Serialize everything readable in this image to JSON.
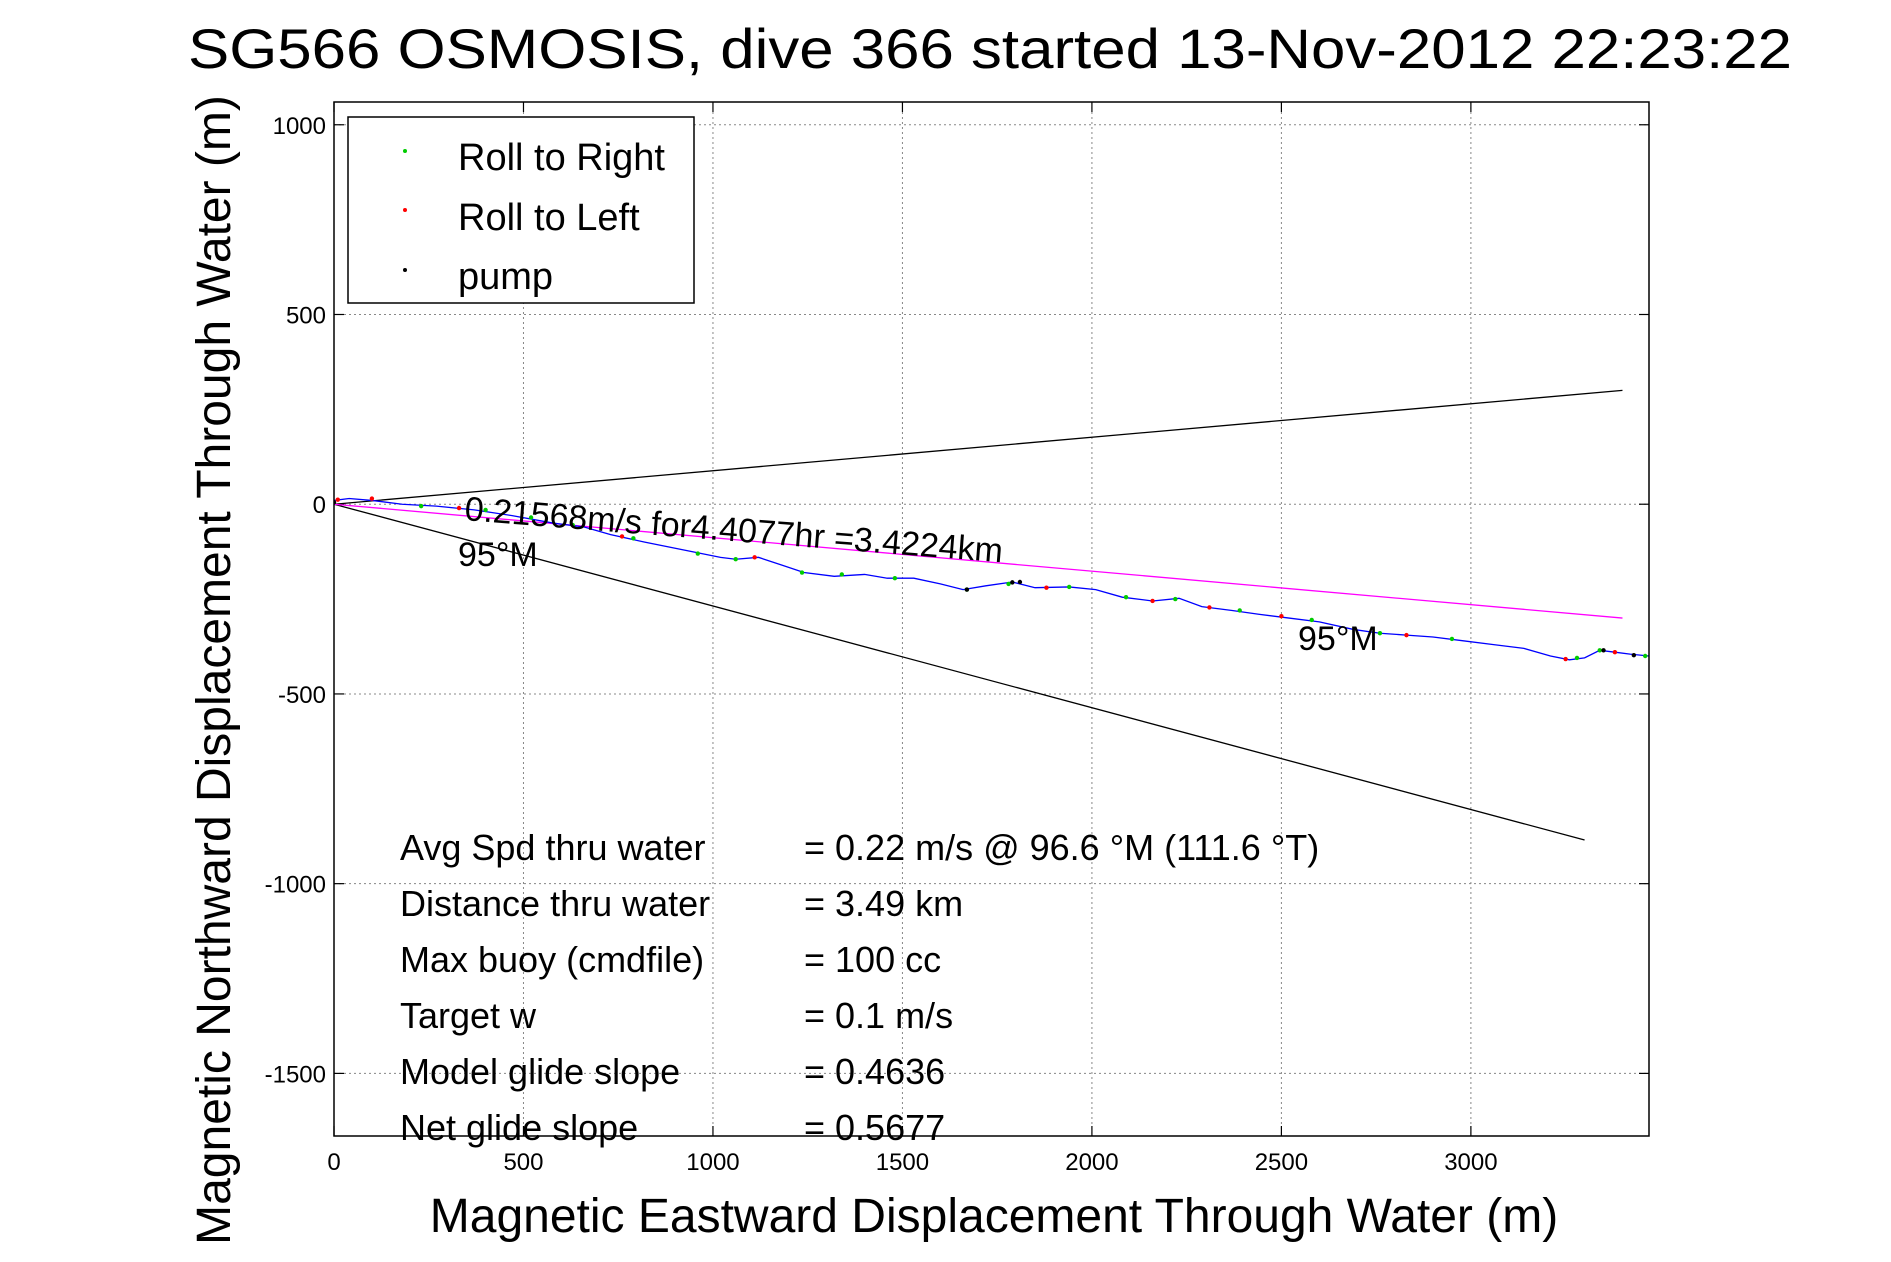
{
  "chart_data": {
    "type": "line",
    "title": "SG566 OSMOSIS, dive 366 started 13-Nov-2012 22:23:22",
    "xlabel": "Magnetic Eastward Displacement Through Water (m)",
    "ylabel": "Magnetic Northward Displacement Through Water (m)",
    "xlim": [
      0,
      3470
    ],
    "ylim": [
      -1665,
      1060
    ],
    "xticks": [
      0,
      500,
      1000,
      1500,
      2000,
      2500,
      3000
    ],
    "yticks": [
      1000,
      500,
      0,
      -500,
      -1000,
      -1500
    ],
    "grid": true,
    "legend": {
      "position": "top-left",
      "entries": [
        {
          "label": "Roll to Right",
          "color": "#00cc00"
        },
        {
          "label": "Roll to Left",
          "color": "#ff0000"
        },
        {
          "label": "pump",
          "color": "#000000"
        }
      ]
    },
    "track": {
      "name": "track",
      "color": "#0000ff",
      "x": [
        0,
        40,
        100,
        180,
        270,
        370,
        470,
        580,
        660,
        730,
        820,
        920,
        1020,
        1060,
        1120,
        1180,
        1240,
        1320,
        1400,
        1460,
        1530,
        1600,
        1660,
        1720,
        1790,
        1850,
        1940,
        2010,
        2080,
        2160,
        2230,
        2290,
        2370,
        2440,
        2520,
        2600,
        2690,
        2760,
        2830,
        2900,
        2980,
        3060,
        3140,
        3210,
        3260,
        3300,
        3340,
        3380,
        3420,
        3470
      ],
      "y": [
        10,
        15,
        10,
        0,
        -5,
        -15,
        -30,
        -50,
        -60,
        -80,
        -100,
        -120,
        -140,
        -145,
        -140,
        -160,
        -180,
        -190,
        -185,
        -195,
        -195,
        -210,
        -225,
        -215,
        -205,
        -220,
        -218,
        -225,
        -245,
        -255,
        -248,
        -270,
        -280,
        -290,
        -300,
        -310,
        -330,
        -340,
        -345,
        -350,
        -360,
        -370,
        -380,
        -400,
        -410,
        -405,
        -385,
        -390,
        -395,
        -400
      ],
      "roll_right": [
        [
          230,
          -5
        ],
        [
          400,
          -15
        ],
        [
          520,
          -35
        ],
        [
          630,
          -55
        ],
        [
          790,
          -90
        ],
        [
          960,
          -130
        ],
        [
          1060,
          -145
        ],
        [
          1235,
          -180
        ],
        [
          1340,
          -185
        ],
        [
          1480,
          -195
        ],
        [
          1670,
          -225
        ],
        [
          1780,
          -210
        ],
        [
          1940,
          -218
        ],
        [
          2090,
          -245
        ],
        [
          2220,
          -250
        ],
        [
          2390,
          -280
        ],
        [
          2580,
          -305
        ],
        [
          2760,
          -340
        ],
        [
          2950,
          -355
        ],
        [
          3280,
          -405
        ],
        [
          3340,
          -385
        ],
        [
          3460,
          -400
        ]
      ],
      "roll_left": [
        [
          10,
          12
        ],
        [
          100,
          15
        ],
        [
          330,
          -10
        ],
        [
          760,
          -85
        ],
        [
          1110,
          -140
        ],
        [
          1880,
          -220
        ],
        [
          2160,
          -255
        ],
        [
          2310,
          -272
        ],
        [
          2500,
          -295
        ],
        [
          2830,
          -345
        ],
        [
          3250,
          -408
        ],
        [
          3380,
          -390
        ]
      ],
      "pump": [
        [
          0,
          5
        ],
        [
          1670,
          -225
        ],
        [
          1790,
          -206
        ],
        [
          1810,
          -205
        ],
        [
          3350,
          -385
        ],
        [
          3430,
          -398
        ]
      ]
    },
    "cone_lines": [
      {
        "name": "upper-bound",
        "color": "#000000",
        "x": [
          0,
          3400
        ],
        "y": [
          0,
          300
        ]
      },
      {
        "name": "lower-bound",
        "color": "#000000",
        "x": [
          0,
          3300
        ],
        "y": [
          0,
          -885
        ]
      },
      {
        "name": "course-line",
        "color": "#ff00ff",
        "x": [
          0,
          3400
        ],
        "y": [
          0,
          -300
        ]
      }
    ],
    "annotations": {
      "speed_label": "0.21568m/s for4.4077hr =3.4224km",
      "heading_start": "95°M",
      "heading_end": "95°M"
    },
    "stats": [
      {
        "label": "Avg Spd thru water",
        "value": "=  0.22 m/s @  96.6 °M (111.6 °T)"
      },
      {
        "label": "Distance thru water",
        "value": "=  3.49 km"
      },
      {
        "label": "Max buoy (cmdfile)",
        "value": "= 100 cc"
      },
      {
        "label": "Target w",
        "value": "= 0.1 m/s"
      },
      {
        "label": "Model glide slope",
        "value": "= 0.4636"
      },
      {
        "label": "Net glide slope",
        "value": "= 0.5677"
      }
    ]
  }
}
